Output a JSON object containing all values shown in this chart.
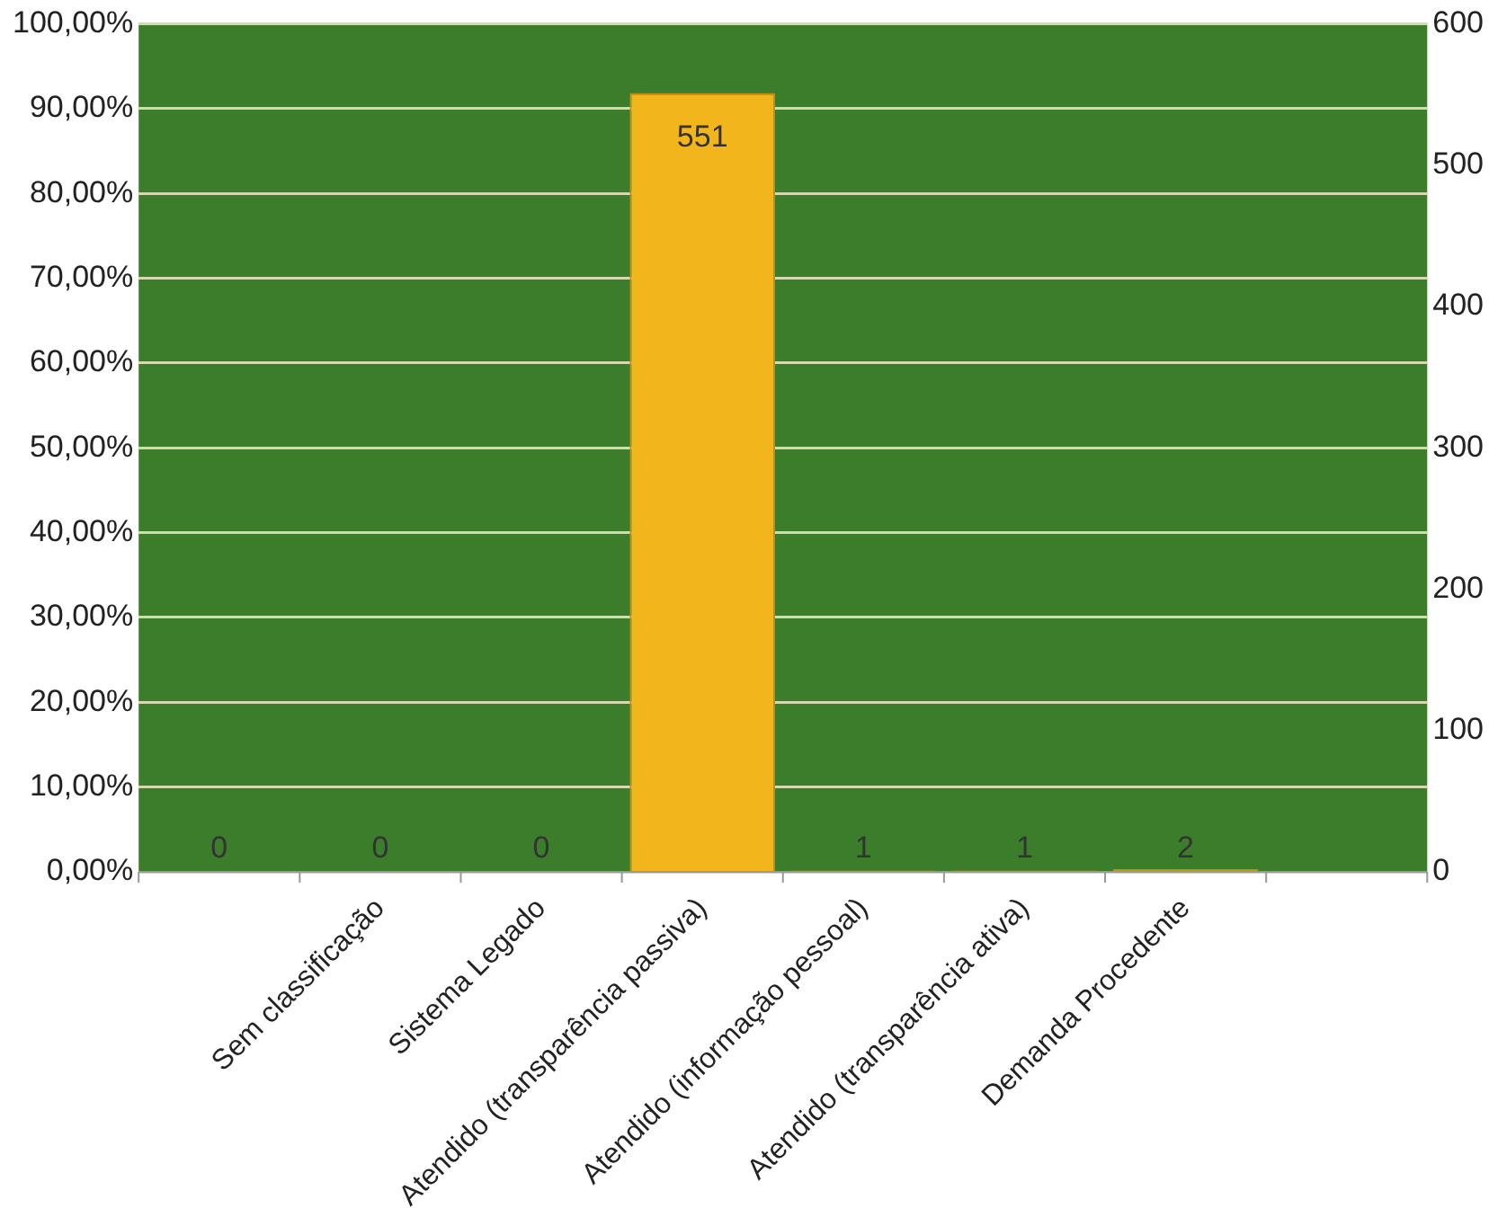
{
  "chart_data": {
    "type": "bar",
    "categories": [
      null,
      "Sem classificação",
      "Sistema Legado",
      "Atendido (transparência passiva)",
      "Atendido (informação pessoal)",
      "Atendido (transparência ativa)",
      "Demanda Procedente",
      null
    ],
    "series": [
      {
        "axis": "y2",
        "color": "#f2b51c",
        "values": [
          0,
          0,
          0,
          551,
          1,
          1,
          2,
          null
        ]
      }
    ],
    "ylim": [
      0,
      100
    ],
    "yticks": [
      {
        "value": 0,
        "label": "0,00%"
      },
      {
        "value": 10,
        "label": "10,00%"
      },
      {
        "value": 20,
        "label": "20,00%"
      },
      {
        "value": 30,
        "label": "30,00%"
      },
      {
        "value": 40,
        "label": "40,00%"
      },
      {
        "value": 50,
        "label": "50,00%"
      },
      {
        "value": 60,
        "label": "60,00%"
      },
      {
        "value": 70,
        "label": "70,00%"
      },
      {
        "value": 80,
        "label": "80,00%"
      },
      {
        "value": 90,
        "label": "90,00%"
      },
      {
        "value": 100,
        "label": "100,00%"
      }
    ],
    "y2lim": [
      0,
      600
    ],
    "y2ticks": [
      0,
      100,
      200,
      300,
      400,
      500,
      600
    ],
    "grid": "y",
    "legend": false,
    "data_labels": true
  }
}
